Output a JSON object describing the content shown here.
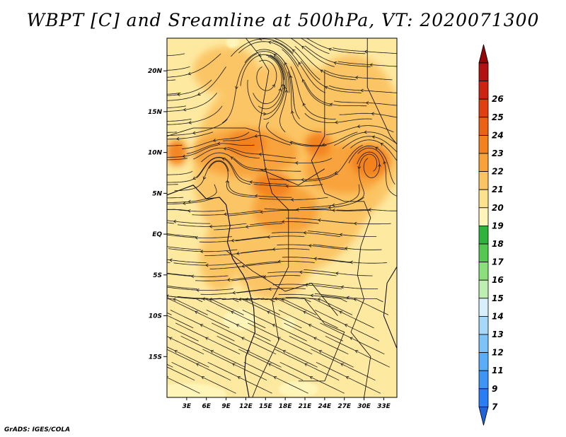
{
  "title": "WBPT [C] and Sreamline at 500hPa, VT: 2020071300",
  "footer": "GrADS: IGES/COLA",
  "map": {
    "variable": "WBPT [C]",
    "overlay": "Streamline",
    "level": "500hPa",
    "valid_time": "2020071300",
    "lon_range": [
      0,
      35
    ],
    "lat_range": [
      -20,
      24
    ],
    "lon_labels": [
      {
        "lon": 3,
        "label": "3E"
      },
      {
        "lon": 6,
        "label": "6E"
      },
      {
        "lon": 9,
        "label": "9E"
      },
      {
        "lon": 12,
        "label": "12E"
      },
      {
        "lon": 15,
        "label": "15E"
      },
      {
        "lon": 18,
        "label": "18E"
      },
      {
        "lon": 21,
        "label": "21E"
      },
      {
        "lon": 24,
        "label": "24E"
      },
      {
        "lon": 27,
        "label": "27E"
      },
      {
        "lon": 30,
        "label": "30E"
      },
      {
        "lon": 33,
        "label": "33E"
      }
    ],
    "lat_labels": [
      {
        "lat": 20,
        "label": "20N"
      },
      {
        "lat": 15,
        "label": "15N"
      },
      {
        "lat": 10,
        "label": "10N"
      },
      {
        "lat": 5,
        "label": "5N"
      },
      {
        "lat": 0,
        "label": "EQ"
      },
      {
        "lat": -5,
        "label": "5S"
      },
      {
        "lat": -10,
        "label": "10S"
      },
      {
        "lat": -15,
        "label": "15S"
      }
    ],
    "field_regions": [
      {
        "level": 20,
        "lon": 18,
        "lat": 8,
        "rlon": 14,
        "rlat": 13
      },
      {
        "level": 20,
        "lon": 28,
        "lat": 12,
        "rlon": 8,
        "rlat": 10
      },
      {
        "level": 20,
        "lon": 16,
        "lat": -3,
        "rlon": 6,
        "rlat": 5
      },
      {
        "level": 20,
        "lon": 8,
        "lat": -3,
        "rlon": 3,
        "rlat": 4
      },
      {
        "level": 20,
        "lon": 9,
        "lat": 20,
        "rlon": 5,
        "rlat": 3
      },
      {
        "level": 21,
        "lon": 12,
        "lat": 10,
        "rlon": 8,
        "rlat": 3
      },
      {
        "level": 21,
        "lon": 27,
        "lat": 8,
        "rlon": 6,
        "rlat": 3
      },
      {
        "level": 21,
        "lon": 18,
        "lat": 3,
        "rlon": 5,
        "rlat": 3
      },
      {
        "level": 22,
        "lon": 31,
        "lat": 9,
        "rlon": 3,
        "rlat": 2
      },
      {
        "level": 22,
        "lon": 16,
        "lat": 6,
        "rlon": 3,
        "rlat": 1.5
      },
      {
        "level": 22,
        "lon": 12,
        "lat": 11,
        "rlon": 3,
        "rlat": 1.5
      },
      {
        "level": 22,
        "lon": 1.5,
        "lat": 10,
        "rlon": 1.6,
        "rlat": 1.6
      },
      {
        "level": 22,
        "lon": 23,
        "lat": 11,
        "rlon": 2,
        "rlat": 1.5
      },
      {
        "level": 18,
        "lon": 11,
        "lat": -10.5,
        "rlon": 2.5,
        "rlat": 1.3
      },
      {
        "level": 18,
        "lon": 18.5,
        "lat": -11,
        "rlon": 1,
        "rlat": 0.8
      },
      {
        "level": 18,
        "lon": 20,
        "lat": -19,
        "rlon": 3,
        "rlat": 1
      },
      {
        "level": 18,
        "lon": 3,
        "lat": -19.6,
        "rlon": 6,
        "rlat": 1.3
      },
      {
        "level": 18,
        "lon": 10,
        "lat": 23.5,
        "rlon": 1,
        "rlat": 0.7
      }
    ],
    "vortices": [
      {
        "lon": 15,
        "lat": 20,
        "radius": 5
      },
      {
        "lon": 31,
        "lat": 9,
        "radius": 3
      },
      {
        "lon": 8,
        "lat": 8,
        "radius": 2
      }
    ]
  },
  "colorbar": {
    "colors": [
      "#1f64d9",
      "#2a7ef5",
      "#3d96f5",
      "#5aaef7",
      "#7ec3f8",
      "#a6d8fa",
      "#d8effc",
      "#bdf0b0",
      "#8ce07c",
      "#54c850",
      "#2eb43c",
      "#fff5b8",
      "#fde28e",
      "#fbc463",
      "#f8a23a",
      "#f3811e",
      "#ec6114",
      "#e0400f",
      "#cc2410",
      "#b31212",
      "#960606"
    ],
    "labels": [
      "7",
      "9",
      "11",
      "12",
      "13",
      "14",
      "15",
      "16",
      "17",
      "18",
      "19",
      "20",
      "21",
      "22",
      "23",
      "24",
      "25",
      "26"
    ]
  }
}
